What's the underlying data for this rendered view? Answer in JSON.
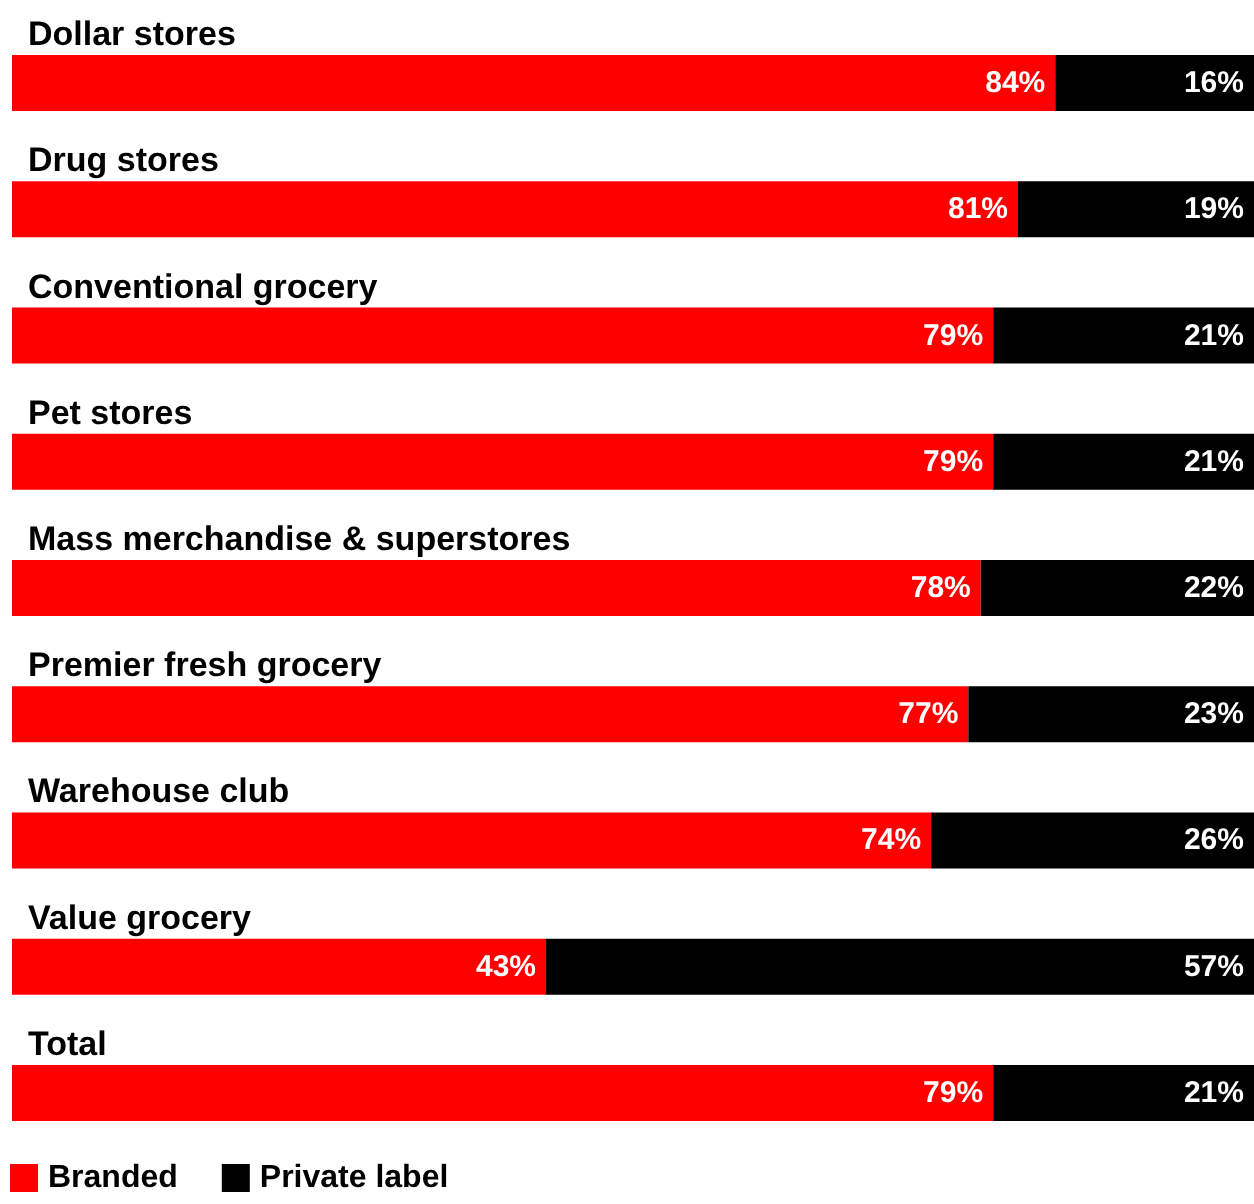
{
  "chart_data": {
    "type": "bar",
    "orientation": "horizontal",
    "stacked": true,
    "legend": "bottom left",
    "categories": [
      "Dollar stores",
      "Drug stores",
      "Conventional grocery",
      "Pet stores",
      "Mass merchandise & superstores",
      "Premier fresh grocery",
      "Warehouse club",
      "Value grocery",
      "Total"
    ],
    "series": [
      {
        "name": "Branded",
        "color": "#ff0000",
        "values": [
          84,
          81,
          79,
          79,
          78,
          77,
          74,
          43,
          79
        ],
        "value_labels": [
          "84%",
          "81%",
          "79%",
          "79%",
          "78%",
          "77%",
          "74%",
          "43%",
          "79%"
        ]
      },
      {
        "name": "Private label",
        "color": "#000000",
        "values": [
          16,
          19,
          21,
          21,
          22,
          23,
          26,
          57,
          21
        ],
        "value_labels": [
          "16%",
          "19%",
          "21%",
          "21%",
          "22%",
          "23%",
          "26%",
          "57%",
          "21%"
        ]
      }
    ]
  }
}
